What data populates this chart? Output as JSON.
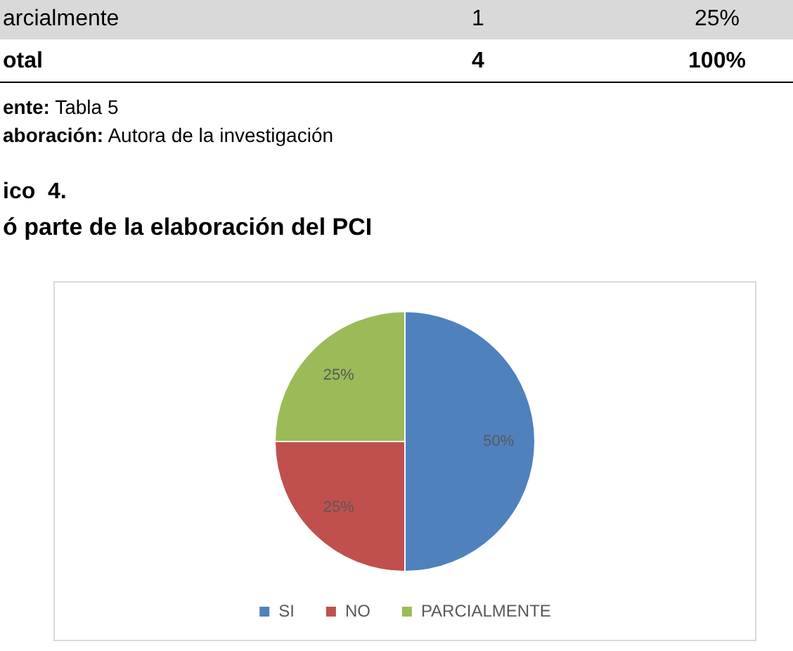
{
  "chart_data": {
    "type": "pie",
    "title": "ó parte de la elaboración del PCI",
    "subtitle": "ico  4.",
    "annotations": [
      "arcialmente",
      "1",
      "25%",
      "otal",
      "4",
      "100%",
      "ente: Tabla 5",
      "aboración: Autora de la investigación"
    ],
    "categories": [
      "SI",
      "NO",
      "PARCIALMENTE"
    ],
    "values": [
      50,
      25,
      25
    ],
    "colors": [
      "#4f81bd",
      "#c0504d",
      "#9bbb59"
    ],
    "value_labels": [
      "50%",
      "25%",
      "25%"
    ],
    "legend": "bottom"
  }
}
